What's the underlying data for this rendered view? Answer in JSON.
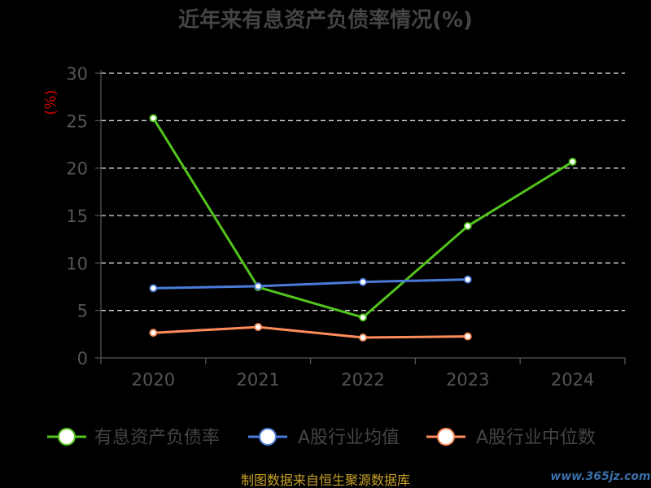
{
  "chart_data": {
    "type": "line",
    "title": "近年来有息资产负债率情况(%)",
    "ylabel": "(%)",
    "categories": [
      "2020",
      "2021",
      "2022",
      "2023",
      "2024"
    ],
    "y_ticks": [
      "0",
      "5",
      "10",
      "15",
      "20",
      "25",
      "30"
    ],
    "ylim": [
      0,
      30
    ],
    "grid": true,
    "legend_position": "bottom",
    "series": [
      {
        "name": "有息资产负债率",
        "color": "#52c41a",
        "values": [
          25.26,
          7.45,
          4.26,
          13.89,
          20.67
        ]
      },
      {
        "name": "A股行业均值",
        "color": "#4a7bd8",
        "values": [
          7.34,
          7.55,
          8.0,
          8.26,
          null
        ]
      },
      {
        "name": "A股行业中位数",
        "color": "#ff8c5a",
        "values": [
          2.64,
          3.25,
          2.14,
          2.26,
          null
        ]
      }
    ]
  },
  "footer": {
    "source": "制图数据来自恒生聚源数据库",
    "watermark": "www.365jz.com"
  }
}
